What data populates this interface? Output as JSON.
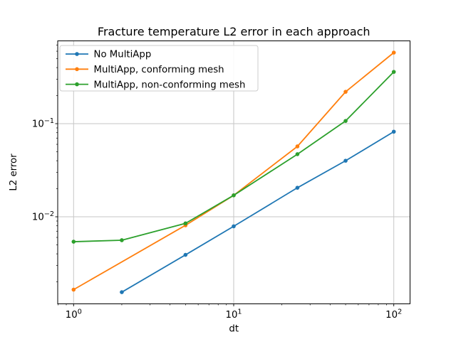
{
  "chart_data": {
    "type": "line",
    "title": "Fracture temperature L2 error in each approach",
    "xlabel": "dt",
    "ylabel": "L2 error",
    "xscale": "log",
    "yscale": "log",
    "xlim": [
      0.794,
      126.0
    ],
    "ylim": [
      0.00116,
      0.78
    ],
    "grid": true,
    "legend_position": "upper left",
    "x_ticks": {
      "values": [
        1,
        10,
        100
      ],
      "labels": [
        "10⁰",
        "10¹",
        "10²"
      ]
    },
    "y_ticks": {
      "values": [
        0.1,
        0.01
      ],
      "labels": [
        "10⁻¹",
        "10⁻²"
      ]
    },
    "series": [
      {
        "name": "No MultiApp",
        "color": "#1f77b4",
        "x": [
          2,
          5,
          10,
          25,
          50,
          100
        ],
        "y": [
          0.00155,
          0.0039,
          0.0079,
          0.0205,
          0.04,
          0.082
        ]
      },
      {
        "name": "MultiApp, conforming mesh",
        "color": "#ff7f0e",
        "x": [
          1,
          5,
          10,
          25,
          50,
          100
        ],
        "y": [
          0.00165,
          0.0081,
          0.017,
          0.057,
          0.22,
          0.58
        ]
      },
      {
        "name": "MultiApp, non-conforming mesh",
        "color": "#2ca02c",
        "x": [
          1,
          2,
          5,
          10,
          25,
          50,
          100
        ],
        "y": [
          0.0054,
          0.0056,
          0.0085,
          0.017,
          0.047,
          0.107,
          0.36
        ]
      }
    ],
    "grid_color": "#c6c6c6",
    "spine_color": "#000000"
  }
}
